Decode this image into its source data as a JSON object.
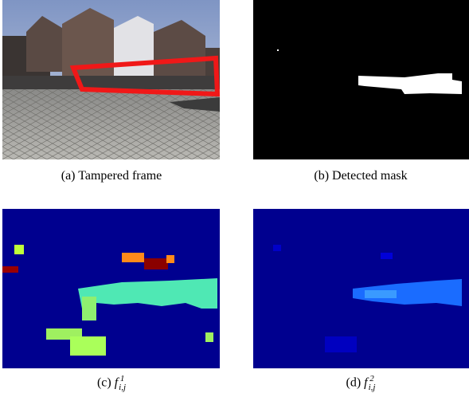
{
  "figure": {
    "panels": [
      {
        "label": "(a)",
        "caption": "Tampered frame"
      },
      {
        "label": "(b)",
        "caption": "Detected mask"
      },
      {
        "label": "(c)",
        "symbol": "f",
        "superscript": "1",
        "subscript": "i,j"
      },
      {
        "label": "(d)",
        "symbol": "f",
        "superscript": "2",
        "subscript": "i,j"
      }
    ]
  }
}
